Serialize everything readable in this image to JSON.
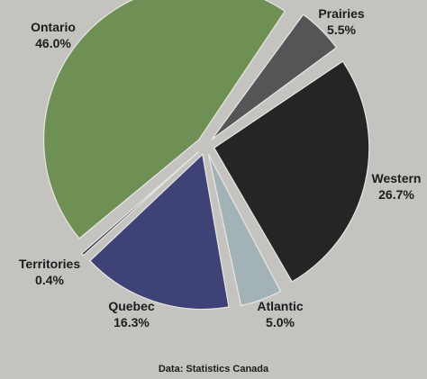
{
  "chart_data": {
    "type": "pie",
    "slices": [
      {
        "label": "Ontario",
        "value": 46.0,
        "display": "46.0%",
        "color": "#6e9055"
      },
      {
        "label": "Prairies",
        "value": 5.5,
        "display": "5.5%",
        "color": "#545557"
      },
      {
        "label": "Western",
        "value": 26.7,
        "display": "26.7%",
        "color": "#262526"
      },
      {
        "label": "Atlantic",
        "value": 5.0,
        "display": "5.0%",
        "color": "#a3b2b7"
      },
      {
        "label": "Quebec",
        "value": 16.3,
        "display": "16.3%",
        "color": "#3f4277"
      },
      {
        "label": "Territories",
        "value": 0.4,
        "display": "0.4%",
        "color": "#2c3049"
      }
    ],
    "exploded": true,
    "source": "Data: Statistics Canada"
  }
}
